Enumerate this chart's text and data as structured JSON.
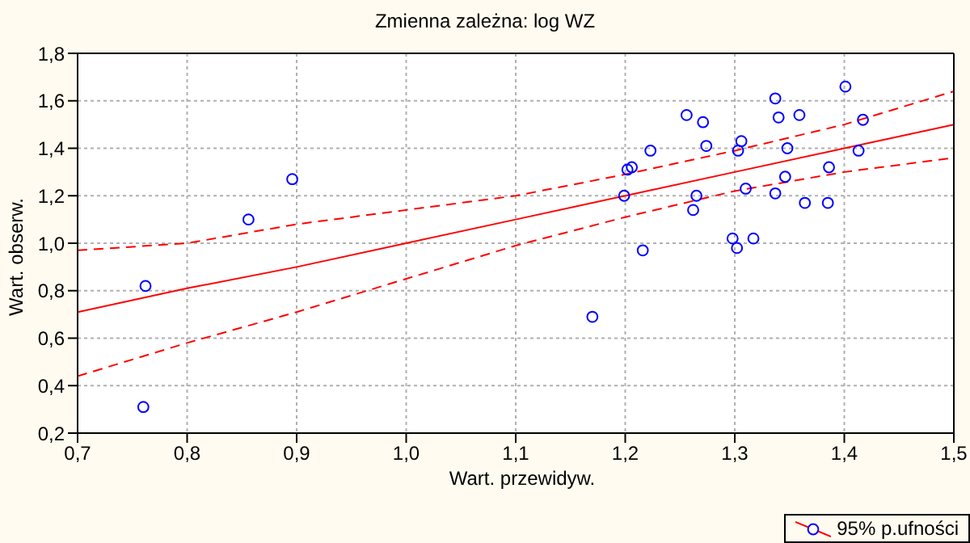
{
  "chart_data": {
    "type": "scatter",
    "title": "Zmienna zależna: log WZ",
    "xlabel": "Wart. przewidyw.",
    "ylabel": "Wart. obserw.",
    "xlim": [
      0.7,
      1.5
    ],
    "ylim": [
      0.2,
      1.8
    ],
    "xticks": [
      {
        "value": 0.7,
        "label": "0,7"
      },
      {
        "value": 0.8,
        "label": "0,8"
      },
      {
        "value": 0.9,
        "label": "0,9"
      },
      {
        "value": 1.0,
        "label": "1,0"
      },
      {
        "value": 1.1,
        "label": "1,1"
      },
      {
        "value": 1.2,
        "label": "1,2"
      },
      {
        "value": 1.3,
        "label": "1,3"
      },
      {
        "value": 1.4,
        "label": "1,4"
      },
      {
        "value": 1.5,
        "label": "1,5"
      }
    ],
    "yticks": [
      {
        "value": 0.2,
        "label": "0,2"
      },
      {
        "value": 0.4,
        "label": "0,4"
      },
      {
        "value": 0.6,
        "label": "0,6"
      },
      {
        "value": 0.8,
        "label": "0,8"
      },
      {
        "value": 1.0,
        "label": "1,0"
      },
      {
        "value": 1.2,
        "label": "1,2"
      },
      {
        "value": 1.4,
        "label": "1,4"
      },
      {
        "value": 1.6,
        "label": "1,6"
      },
      {
        "value": 1.8,
        "label": "1,8"
      }
    ],
    "grid": true,
    "legend": "bottom right",
    "marker": "circle",
    "series": [
      {
        "color": "#0000ff",
        "marker": "circle",
        "x": [
          0.762,
          0.76,
          0.856,
          0.896,
          1.17,
          1.199,
          1.202,
          1.206,
          1.216,
          1.223,
          1.256,
          1.262,
          1.265,
          1.271,
          1.274,
          1.298,
          1.302,
          1.303,
          1.306,
          1.31,
          1.317,
          1.337,
          1.337,
          1.34,
          1.346,
          1.348,
          1.359,
          1.364,
          1.385,
          1.386,
          1.401,
          1.413,
          1.417
        ],
        "values": [
          0.82,
          0.31,
          1.1,
          1.27,
          0.69,
          1.2,
          1.31,
          1.32,
          0.97,
          1.39,
          1.54,
          1.14,
          1.2,
          1.51,
          1.41,
          1.02,
          0.98,
          1.39,
          1.43,
          1.23,
          1.02,
          1.61,
          1.21,
          1.53,
          1.28,
          1.4,
          1.54,
          1.17,
          1.17,
          1.32,
          1.66,
          1.39,
          1.52
        ]
      },
      {
        "type": "line",
        "name": "95% p.ufności",
        "color": "#ff0000",
        "marker": "none",
        "line_style": "solid",
        "x": [
          0.7,
          0.8,
          0.9,
          1.0,
          1.1,
          1.2,
          1.3,
          1.4,
          1.5
        ],
        "values": [
          0.71,
          0.81,
          0.9,
          1.0,
          1.1,
          1.2,
          1.3,
          1.4,
          1.5
        ]
      },
      {
        "type": "line",
        "color": "#ff0000",
        "marker": "none",
        "line_style": "dashed",
        "x": [
          0.7,
          0.8,
          0.9,
          1.0,
          1.1,
          1.2,
          1.3,
          1.4,
          1.5
        ],
        "values": [
          0.44,
          0.58,
          0.71,
          0.85,
          0.99,
          1.11,
          1.22,
          1.3,
          1.36
        ]
      },
      {
        "type": "line",
        "color": "#ff0000",
        "marker": "none",
        "line_style": "dashed",
        "x": [
          0.7,
          0.8,
          0.9,
          1.0,
          1.1,
          1.2,
          1.3,
          1.4,
          1.5
        ],
        "values": [
          0.97,
          1.0,
          1.08,
          1.14,
          1.2,
          1.29,
          1.39,
          1.5,
          1.64
        ]
      }
    ]
  }
}
